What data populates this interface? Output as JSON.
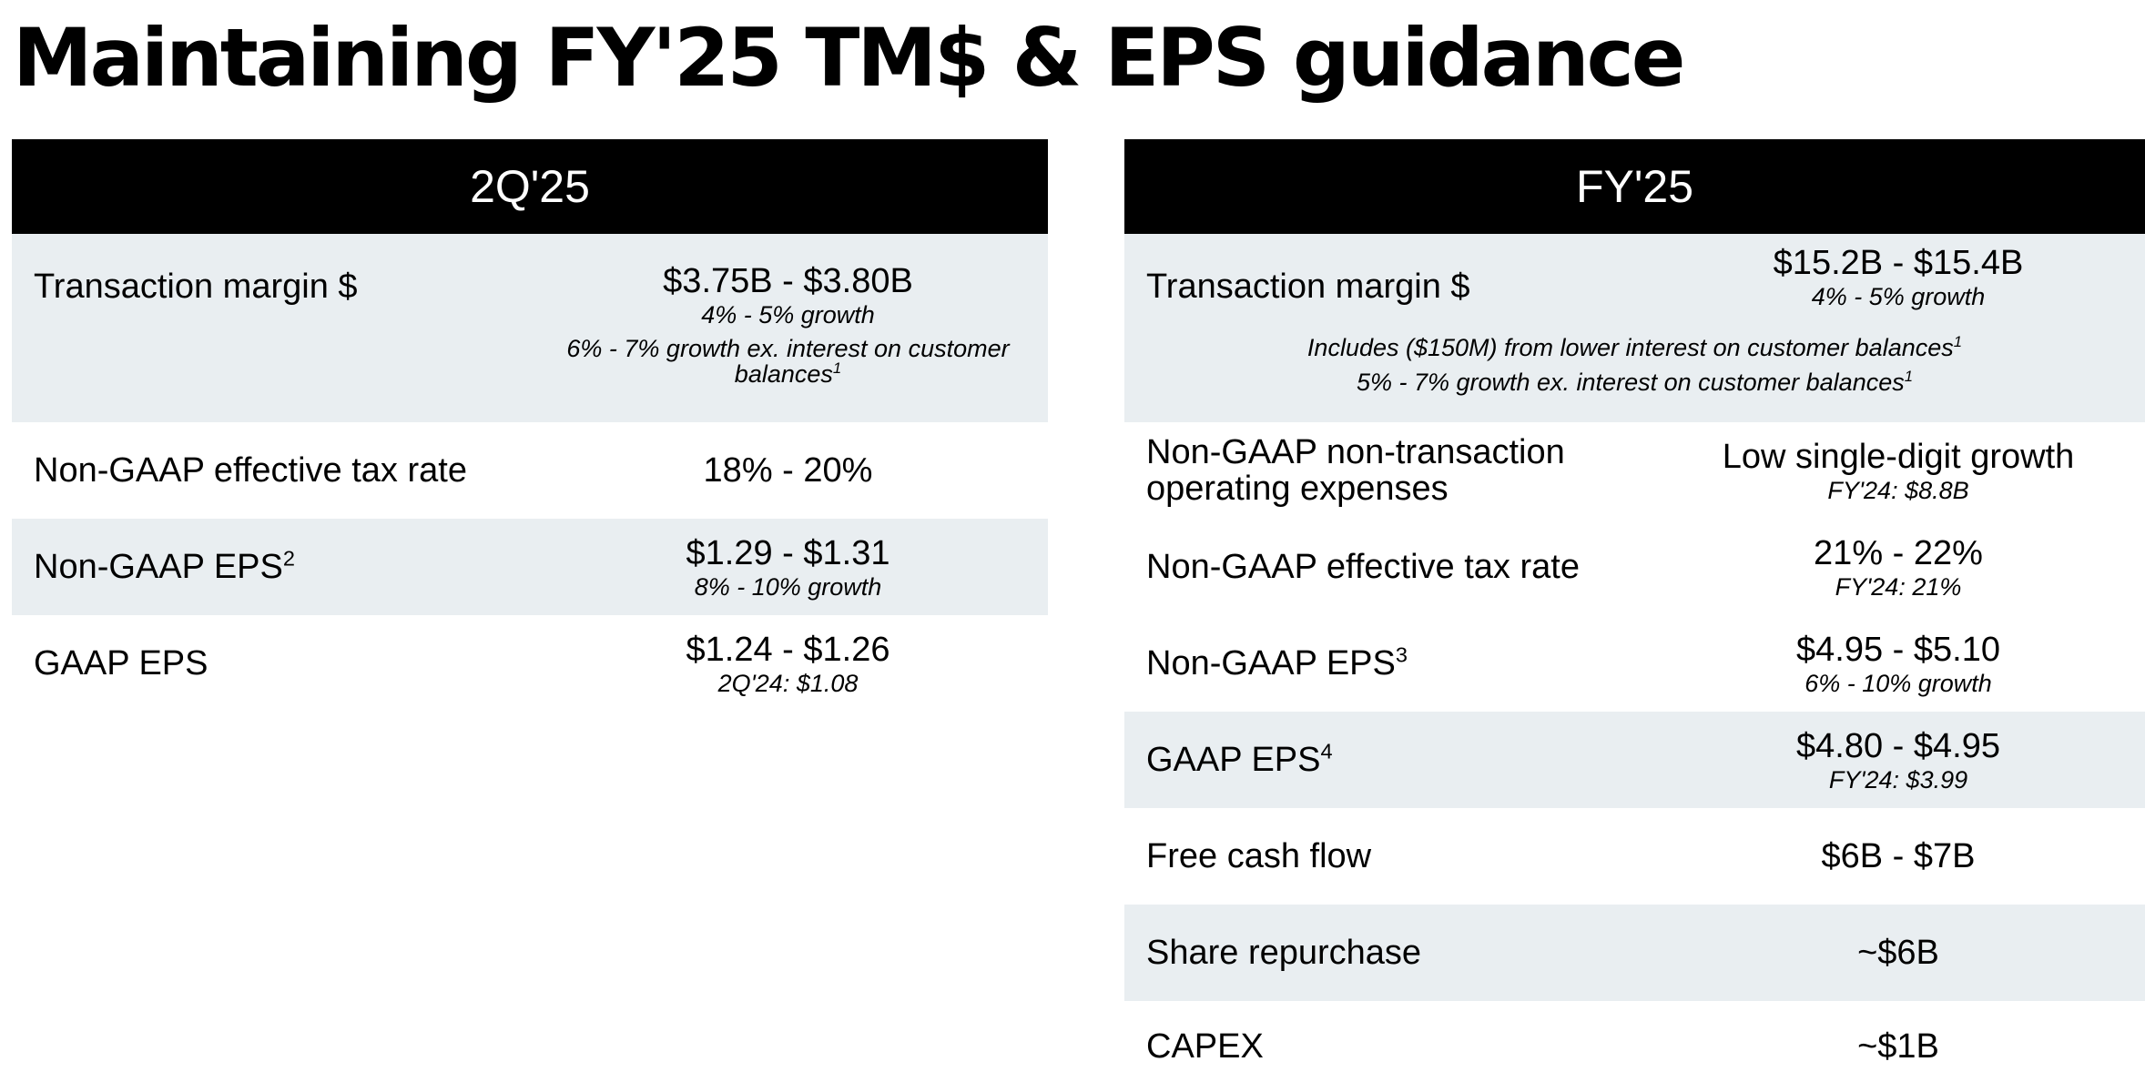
{
  "title": "Maintaining FY'25 TM$ & EPS guidance",
  "left": {
    "header": "2Q'25",
    "rows": [
      {
        "label": "Transaction margin $",
        "value": "$3.75B - $3.80B",
        "sub": "4% - 5% growth",
        "note": "6% - 7% growth ex. interest on customer balances",
        "note_sup": "1"
      },
      {
        "label": "Non-GAAP effective tax rate",
        "value": "18% - 20%"
      },
      {
        "label": "Non-GAAP EPS",
        "label_sup": "2",
        "value": "$1.29 - $1.31",
        "sub": "8% - 10% growth"
      },
      {
        "label": "GAAP EPS",
        "value": "$1.24 - $1.26",
        "sub": "2Q'24: $1.08"
      }
    ]
  },
  "right": {
    "header": "FY'25",
    "rows": [
      {
        "label": "Transaction margin $",
        "value": "$15.2B - $15.4B",
        "sub": "4% - 5% growth",
        "note1": "Includes ($150M) from lower interest on customer balances",
        "note1_sup": "1",
        "note2": "5% - 7% growth ex. interest on customer balances",
        "note2_sup": "1"
      },
      {
        "label": "Non-GAAP non-transaction operating expenses",
        "value": "Low single-digit growth",
        "sub": "FY'24: $8.8B"
      },
      {
        "label": "Non-GAAP effective tax rate",
        "value": "21% - 22%",
        "sub": "FY'24: 21%"
      },
      {
        "label": "Non-GAAP EPS",
        "label_sup": "3",
        "value": "$4.95 - $5.10",
        "sub": "6% - 10% growth"
      },
      {
        "label": "GAAP EPS",
        "label_sup": "4",
        "value": "$4.80 - $4.95",
        "sub": "FY'24: $3.99"
      },
      {
        "label": "Free cash flow",
        "value": "$6B - $7B"
      },
      {
        "label": "Share repurchase",
        "value": "~$6B"
      },
      {
        "label": "CAPEX",
        "value": "~$1B"
      }
    ]
  },
  "colors": {
    "header_bg": "#000000",
    "header_text": "#ffffff",
    "shaded_row": "#e9eef1"
  }
}
